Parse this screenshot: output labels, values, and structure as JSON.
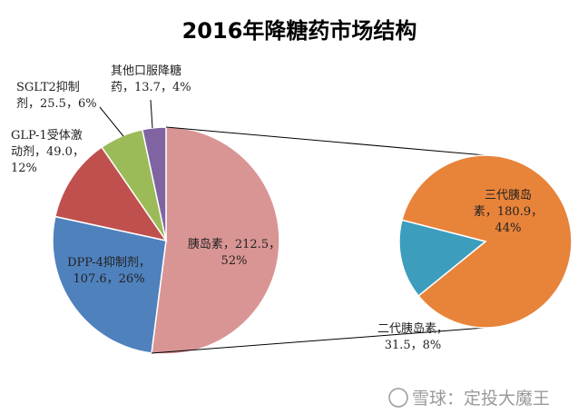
{
  "chart_data": [
    {
      "type": "pie",
      "title": "2016年降糖药市场结构",
      "slices": [
        {
          "name": "胰岛素",
          "value": 212.5,
          "percent": 52,
          "color": "#d99594",
          "label": [
            "胰岛素，212.5，",
            "52%"
          ]
        },
        {
          "name": "DPP-4抑制剂",
          "value": 107.6,
          "percent": 26,
          "color": "#4f81bd",
          "label": [
            "DPP-4抑制剂，",
            "107.6，26%"
          ]
        },
        {
          "name": "GLP-1受体激动剂",
          "value": 49.0,
          "percent": 12,
          "color": "#c0504d",
          "label": [
            "GLP-1受体激",
            "动剂，49.0，",
            "12%"
          ]
        },
        {
          "name": "SGLT2抑制剂",
          "value": 25.5,
          "percent": 6,
          "color": "#9bbb59",
          "label": [
            "SGLT2抑制",
            "剂，25.5，6%"
          ]
        },
        {
          "name": "其他口服降糖药",
          "value": 13.7,
          "percent": 4,
          "color": "#8064a2",
          "label": [
            "其他口服降糖",
            "药，13.7，4%"
          ]
        }
      ]
    },
    {
      "type": "pie",
      "title": "",
      "slices": [
        {
          "name": "三代胰岛素",
          "value": 180.9,
          "percent": 44,
          "color": "#e8833a",
          "label": [
            "三代胰岛",
            "素，180.9，",
            "44%"
          ]
        },
        {
          "name": "二代胰岛素",
          "value": 31.5,
          "percent": 8,
          "color": "#3c9dbd",
          "label": [
            "二代胰岛素，",
            "31.5，8%"
          ]
        }
      ]
    }
  ],
  "watermark": "雪球：定投大魔王"
}
